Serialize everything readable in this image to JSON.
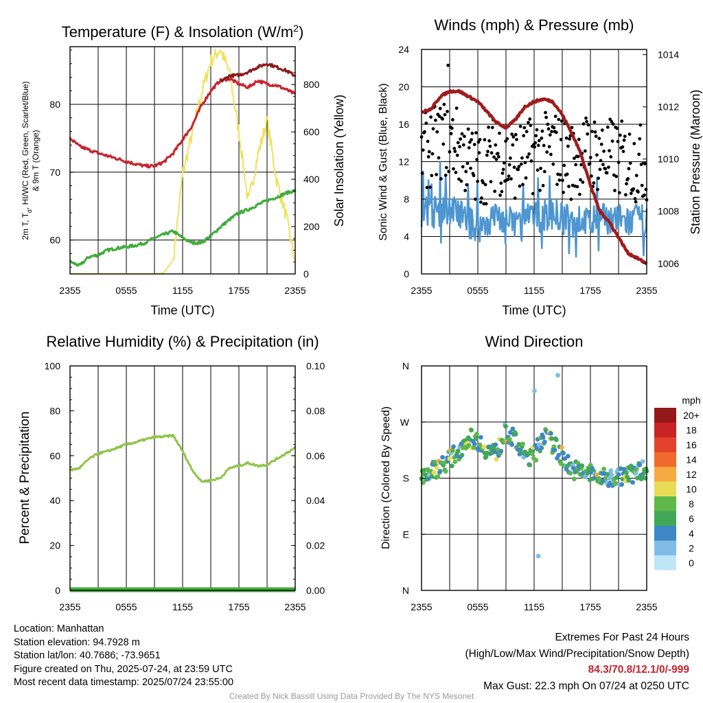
{
  "chart_data": [
    {
      "type": "line",
      "title": "Temperature (F) & Insolation (W/m²)",
      "xlabel": "Time (UTC)",
      "ylabel": "2m T, Td, HI/WC (Red, Green, Scarlet/Blue) & 9m T (Orange)",
      "ylabel_line1": "2m T, Td, HI/WC (Red, Green, Scarlet/Blue)",
      "ylabel_line2": "& 9m T (Orange)",
      "y2label": "Solar Insolation (Yellow)",
      "x_ticks": [
        "2355",
        "0555",
        "1155",
        "1755",
        "2355"
      ],
      "y_ticks": [
        "60",
        "70",
        "80"
      ],
      "y2_ticks": [
        "0",
        "200",
        "400",
        "600",
        "800"
      ],
      "ylim": [
        55,
        88.5
      ],
      "y2lim": [
        0,
        960
      ],
      "x_hours_since_start": [
        0,
        1,
        2,
        3,
        4,
        5,
        6,
        7,
        8,
        9,
        10,
        11,
        12,
        13,
        14,
        15,
        16,
        17,
        18,
        19,
        20,
        21,
        22,
        23,
        24
      ],
      "series": [
        {
          "key": "temp",
          "color": "#c8232c",
          "values": [
            75.0,
            73.8,
            73.3,
            72.8,
            72.4,
            72.0,
            71.6,
            71.2,
            70.9,
            70.9,
            71.5,
            72.8,
            74.8,
            76.8,
            79.8,
            82.0,
            83.5,
            83.8,
            83.0,
            82.5,
            83.5,
            83.0,
            82.8,
            82.2,
            81.5
          ]
        },
        {
          "key": "dewpoint",
          "color": "#41ab3b",
          "values": [
            56.8,
            56.2,
            57.5,
            57.8,
            58.5,
            58.8,
            59.0,
            59.2,
            59.6,
            60.3,
            60.8,
            61.3,
            60.3,
            59.6,
            59.6,
            60.6,
            61.9,
            63.0,
            64.0,
            64.5,
            65.2,
            65.8,
            66.3,
            66.9,
            67.3
          ]
        },
        {
          "key": "heat_index",
          "color": "#8b1a1a",
          "values": [
            null,
            null,
            null,
            null,
            null,
            null,
            null,
            null,
            null,
            null,
            null,
            null,
            null,
            null,
            null,
            null,
            83.3,
            84.2,
            84.3,
            84.8,
            85.5,
            86.0,
            85.5,
            85.0,
            84.2
          ]
        },
        {
          "key": "insolation",
          "color": "#f2e15b",
          "axis": "y2",
          "values": [
            0,
            0,
            0,
            0,
            0,
            0,
            0,
            0,
            0,
            0,
            5,
            60,
            420,
            590,
            760,
            900,
            950,
            850,
            600,
            300,
            500,
            650,
            400,
            250,
            50
          ]
        }
      ]
    },
    {
      "type": "scatter",
      "title": "Winds (mph) & Pressure (mb)",
      "xlabel": "Time (UTC)",
      "ylabel": "Sonic Wind & Gust (Blue, Black)",
      "y2label": "Station Pressure (Maroon)",
      "x_ticks": [
        "2355",
        "0555",
        "1155",
        "1755",
        "2355"
      ],
      "y_ticks": [
        "0",
        "4",
        "8",
        "12",
        "16",
        "20",
        "24"
      ],
      "y2_ticks": [
        "1006",
        "1008",
        "1010",
        "1012",
        "1014"
      ],
      "ylim": [
        0,
        24
      ],
      "y2lim": [
        1005.6,
        1014.2
      ],
      "wind_mean_mph": [
        6.2,
        6.5,
        6.8,
        7.0,
        6.5,
        5.5,
        5.0,
        5.5,
        6.3,
        5.5,
        5.5,
        5.8,
        6.0,
        6.2,
        6.5,
        6.0,
        5.5,
        5.8,
        5.5,
        5.8,
        6.0,
        5.8,
        5.5,
        5.8,
        5.8
      ],
      "gust_mean_mph": [
        12.8,
        13.5,
        14.2,
        14.5,
        13.5,
        12.0,
        11.2,
        11.8,
        13.0,
        12.0,
        12.0,
        12.2,
        12.8,
        13.0,
        13.5,
        12.8,
        12.0,
        12.8,
        13.0,
        12.8,
        12.5,
        12.3,
        12.0,
        11.8,
        12.0
      ],
      "series": [
        {
          "key": "wind",
          "color": "#4e96d1",
          "name": "Sonic Wind"
        },
        {
          "key": "gust",
          "color": "#000000",
          "name": "Gust"
        },
        {
          "key": "pressure",
          "color": "#a01c1c",
          "axis": "y2",
          "values": [
            1011.8,
            1011.9,
            1012.4,
            1012.6,
            1012.6,
            1012.4,
            1012.2,
            1011.8,
            1011.4,
            1011.2,
            1011.5,
            1012.0,
            1012.2,
            1012.3,
            1012.2,
            1011.7,
            1011.0,
            1010.2,
            1009.0,
            1008.0,
            1007.6,
            1007.0,
            1006.4,
            1006.2,
            1006.0
          ]
        }
      ]
    },
    {
      "type": "line",
      "title": "Relative Humidity (%) & Precipitation (in)",
      "ylabel": "Percent & Precipitation",
      "x_ticks": [
        "2355",
        "0555",
        "1155",
        "1755",
        "2355"
      ],
      "y_ticks": [
        "0",
        "20",
        "40",
        "60",
        "80",
        "100"
      ],
      "y2_ticks": [
        "0.00",
        "0.02",
        "0.04",
        "0.06",
        "0.08",
        "0.10"
      ],
      "ylim": [
        0,
        100
      ],
      "y2lim": [
        0,
        0.1
      ],
      "series": [
        {
          "key": "rh",
          "color": "#8fc449",
          "values": [
            53.5,
            54.5,
            58.5,
            61.0,
            62.0,
            63.5,
            65.0,
            66.0,
            67.2,
            68.3,
            68.5,
            69.0,
            62.0,
            53.8,
            48.5,
            49.0,
            50.0,
            54.5,
            55.5,
            56.8,
            55.5,
            56.0,
            58.5,
            61.0,
            63.5
          ]
        },
        {
          "key": "precip",
          "color": "#41ab3b",
          "axis": "y2",
          "values": [
            0,
            0,
            0,
            0,
            0,
            0,
            0,
            0,
            0,
            0,
            0,
            0,
            0,
            0,
            0,
            0,
            0,
            0,
            0,
            0,
            0,
            0,
            0,
            0,
            0
          ]
        }
      ]
    },
    {
      "type": "scatter",
      "title": "Wind Direction",
      "ylabel": "Direction (Colored By Speed)",
      "x_ticks": [
        "2355",
        "0555",
        "1155",
        "1755",
        "2355"
      ],
      "y_ticks": [
        "N",
        "E",
        "S",
        "W",
        "N"
      ],
      "ylim": [
        0,
        360
      ],
      "direction_mean_deg": [
        185,
        190,
        200,
        210,
        225,
        245,
        240,
        225,
        220,
        255,
        240,
        215,
        215,
        250,
        235,
        215,
        195,
        190,
        188,
        180,
        180,
        182,
        185,
        190,
        195
      ],
      "colorbar": {
        "unit": "mph",
        "labels": [
          "0",
          "2",
          "4",
          "6",
          "8",
          "10",
          "12",
          "14",
          "16",
          "18",
          "20+"
        ],
        "colors": [
          "#bfe6f8",
          "#7fbde8",
          "#3f86c7",
          "#41a858",
          "#5fb84a",
          "#e9dc55",
          "#f6aa42",
          "#f06a2c",
          "#e2432a",
          "#c92225",
          "#931818"
        ]
      }
    }
  ],
  "footer": {
    "location": "Location: Manhattan",
    "elevation": "Station elevation: 94.7928 m",
    "latlon": "Station lat/lon: 40.7686; -73.9651",
    "created": "Figure created on Thu, 2025-07-24, at 23:59 UTC",
    "recent": "Most recent data timestamp: 2025/07/24 23:55:00",
    "extremes_title": "Extremes For Past 24 Hours",
    "extremes_sub": "(High/Low/Max Wind/Precipitation/Snow Depth)",
    "extremes_values": "84.3/70.8/12.1/0/-999",
    "max_gust": "Max Gust: 22.3 mph On 07/24 at 0250 UTC",
    "credit": "Created By Nick Bassill Using Data Provided By The NYS Mesonet"
  },
  "colors": {
    "extremes": "#c8232c",
    "credit": "#999999"
  }
}
